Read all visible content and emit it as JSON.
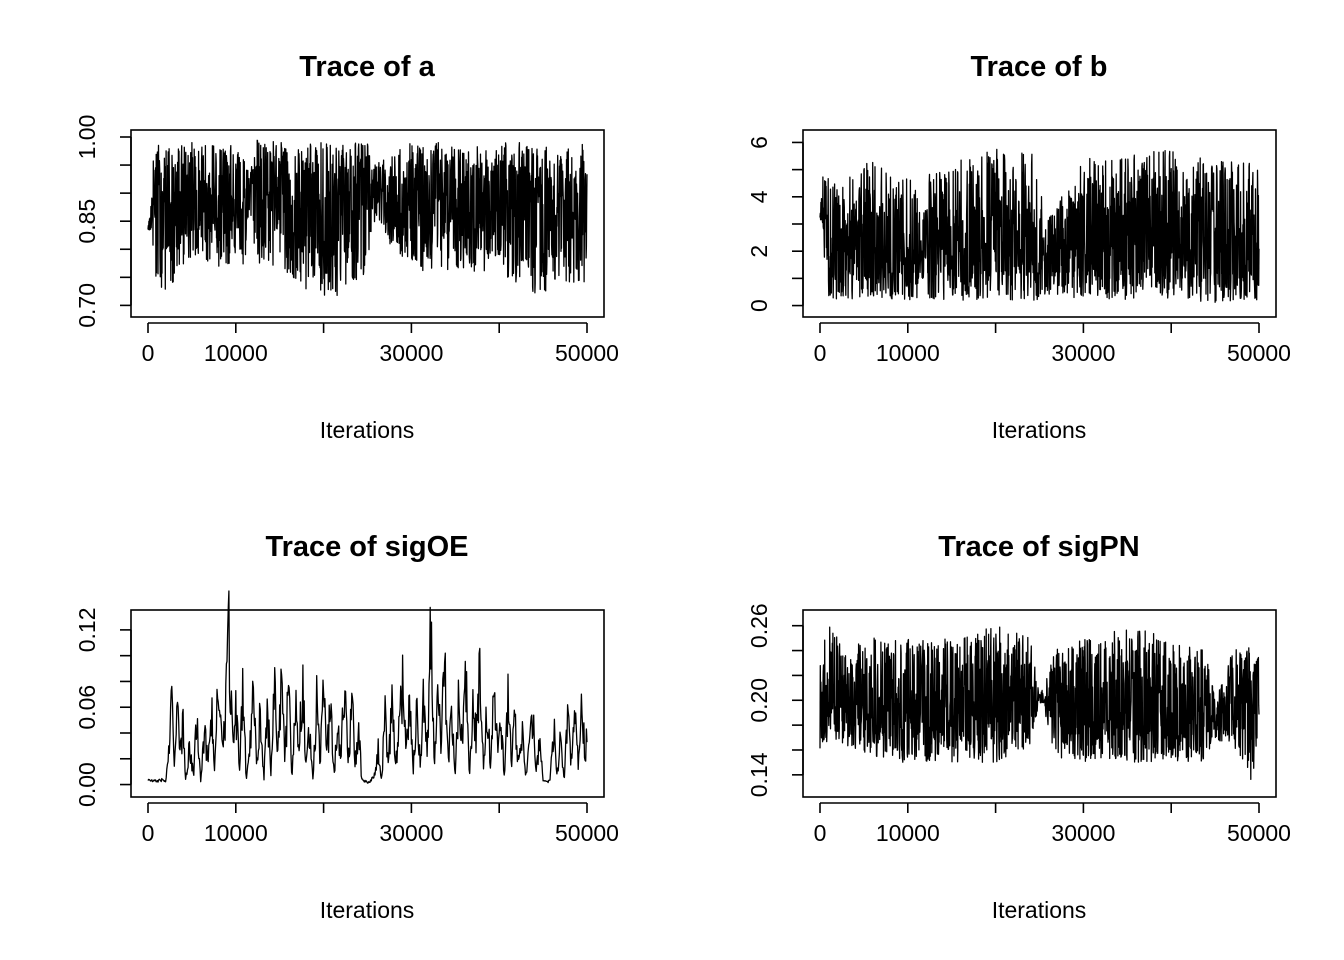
{
  "figure": {
    "colors": {
      "background": "#ffffff",
      "ink": "#000000"
    }
  },
  "chart_data": [
    {
      "type": "line",
      "title": "Trace of a",
      "xlabel": "Iterations",
      "ylabel": "",
      "xlim": [
        0,
        50000
      ],
      "ylim": [
        0.69,
        1.0
      ],
      "x_ticks": [
        0,
        10000,
        20000,
        30000,
        40000,
        50000
      ],
      "x_tick_labels": [
        "0",
        "10000",
        "",
        "30000",
        "",
        "50000"
      ],
      "y_ticks": [
        0.7,
        0.75,
        0.8,
        0.85,
        0.9,
        0.95,
        1.0
      ],
      "y_tick_labels": [
        "0.70",
        "",
        "",
        "0.85",
        "",
        "",
        "1.00"
      ],
      "series": [
        {
          "x": [
            0,
            300,
            600,
            1000,
            2000,
            3000,
            4000,
            5000,
            8000,
            11000,
            11500,
            12500,
            15000,
            20000,
            25000,
            25500,
            30000,
            35000,
            40000,
            45000,
            46000,
            50000
          ],
          "center": [
            0.84,
            0.84,
            0.87,
            0.88,
            0.88,
            0.87,
            0.88,
            0.88,
            0.88,
            0.88,
            0.9,
            0.88,
            0.88,
            0.88,
            0.88,
            0.9,
            0.88,
            0.88,
            0.88,
            0.88,
            0.88,
            0.88
          ],
          "low": [
            0.83,
            0.82,
            0.77,
            0.74,
            0.72,
            0.74,
            0.75,
            0.77,
            0.77,
            0.77,
            0.87,
            0.77,
            0.77,
            0.7,
            0.75,
            0.85,
            0.76,
            0.76,
            0.76,
            0.71,
            0.74,
            0.74
          ],
          "high": [
            0.85,
            0.87,
            0.97,
            0.99,
            0.99,
            0.97,
            0.99,
            0.99,
            0.99,
            0.99,
            0.93,
            1.0,
            0.99,
            0.99,
            0.99,
            0.95,
            0.99,
            0.99,
            0.99,
            0.99,
            0.97,
            0.99
          ]
        }
      ]
    },
    {
      "type": "line",
      "title": "Trace of b",
      "xlabel": "Iterations",
      "ylabel": "",
      "xlim": [
        0,
        50000
      ],
      "ylim": [
        -0.2,
        6.2
      ],
      "x_ticks": [
        0,
        10000,
        20000,
        30000,
        40000,
        50000
      ],
      "x_tick_labels": [
        "0",
        "10000",
        "",
        "30000",
        "",
        "50000"
      ],
      "y_ticks": [
        0,
        1,
        2,
        3,
        4,
        5,
        6
      ],
      "y_tick_labels": [
        "0",
        "",
        "2",
        "",
        "4",
        "",
        "6"
      ],
      "series": [
        {
          "x": [
            0,
            300,
            600,
            1000,
            2000,
            4000,
            5000,
            8000,
            11000,
            11500,
            12500,
            15000,
            20000,
            25000,
            25500,
            30000,
            35000,
            40000,
            45000,
            50000
          ],
          "center": [
            3.3,
            3.2,
            2.5,
            2.0,
            2.0,
            2.0,
            2.3,
            2.0,
            2.0,
            1.8,
            2.0,
            2.2,
            2.3,
            2.2,
            1.6,
            2.2,
            2.2,
            2.3,
            2.3,
            2.0
          ],
          "low": [
            3.2,
            3.0,
            1.0,
            0.3,
            0.2,
            0.2,
            0.3,
            0.2,
            0.2,
            1.0,
            0.2,
            0.2,
            0.2,
            0.2,
            0.4,
            0.2,
            0.2,
            0.2,
            0.1,
            0.2
          ],
          "high": [
            3.5,
            4.8,
            5.0,
            4.6,
            4.5,
            5.0,
            5.6,
            4.8,
            4.6,
            3.0,
            5.0,
            5.2,
            6.0,
            5.5,
            3.0,
            5.4,
            5.6,
            5.8,
            5.3,
            5.3
          ]
        }
      ]
    },
    {
      "type": "line",
      "title": "Trace of sigOE",
      "xlabel": "Iterations",
      "ylabel": "",
      "xlim": [
        0,
        50000
      ],
      "ylim": [
        -0.005,
        0.13
      ],
      "x_ticks": [
        0,
        10000,
        20000,
        30000,
        40000,
        50000
      ],
      "x_tick_labels": [
        "0",
        "10000",
        "",
        "30000",
        "",
        "50000"
      ],
      "y_ticks": [
        0.0,
        0.02,
        0.04,
        0.06,
        0.08,
        0.1,
        0.12
      ],
      "y_tick_labels": [
        "0.00",
        "",
        "",
        "0.06",
        "",
        "",
        "0.12"
      ],
      "series": [
        {
          "name_hidden": true,
          "x": [
            0,
            500,
            1000,
            1500,
            2000,
            2300,
            2700,
            3000,
            3300,
            3600,
            4000,
            4300,
            4700,
            5200,
            5600,
            6000,
            6400,
            6800,
            7200,
            7600,
            8000,
            8400,
            8800,
            9200,
            9600,
            10000,
            10400,
            10800,
            11200,
            11600,
            12000,
            12400,
            12800,
            13200,
            13600,
            14000,
            14400,
            14800,
            15200,
            15600,
            16000,
            16400,
            16800,
            17200,
            17600,
            18000,
            18400,
            18800,
            19200,
            19600,
            20000,
            20400,
            20800,
            21200,
            21600,
            22000,
            22400,
            22800,
            23200,
            23600,
            24000,
            24300,
            24600,
            25000,
            25400,
            25800,
            26200,
            26600,
            27000,
            27400,
            27800,
            28200,
            28600,
            29000,
            29400,
            29800,
            30200,
            30600,
            31000,
            31400,
            31800,
            32200,
            32600,
            33000,
            33400,
            33800,
            34200,
            34600,
            35000,
            35400,
            35800,
            36200,
            36600,
            37000,
            37400,
            37800,
            38200,
            38600,
            39000,
            39400,
            39800,
            40200,
            40600,
            41000,
            41400,
            41800,
            42200,
            42600,
            43000,
            43400,
            43800,
            44200,
            44600,
            45000,
            45400,
            45800,
            46200,
            46600,
            47000,
            47400,
            47800,
            48200,
            48600,
            49000,
            49400,
            49800,
            50000
          ],
          "y": [
            0.004,
            0.003,
            0.003,
            0.004,
            0.003,
            0.02,
            0.07,
            0.015,
            0.09,
            0.02,
            0.05,
            0.005,
            0.03,
            0.01,
            0.06,
            0.004,
            0.045,
            0.02,
            0.07,
            0.01,
            0.095,
            0.03,
            0.06,
            0.125,
            0.04,
            0.065,
            0.015,
            0.08,
            0.005,
            0.03,
            0.095,
            0.02,
            0.06,
            0.003,
            0.07,
            0.01,
            0.095,
            0.03,
            0.08,
            0.02,
            0.09,
            0.006,
            0.075,
            0.03,
            0.09,
            0.015,
            0.05,
            0.004,
            0.07,
            0.02,
            0.09,
            0.03,
            0.065,
            0.01,
            0.05,
            0.03,
            0.09,
            0.015,
            0.07,
            0.02,
            0.05,
            0.008,
            0.003,
            0.002,
            0.003,
            0.01,
            0.03,
            0.005,
            0.06,
            0.02,
            0.07,
            0.015,
            0.05,
            0.09,
            0.03,
            0.08,
            0.01,
            0.065,
            0.02,
            0.075,
            0.03,
            0.13,
            0.015,
            0.07,
            0.04,
            0.1,
            0.02,
            0.06,
            0.01,
            0.08,
            0.03,
            0.09,
            0.005,
            0.07,
            0.04,
            0.095,
            0.015,
            0.06,
            0.02,
            0.075,
            0.03,
            0.05,
            0.01,
            0.07,
            0.02,
            0.06,
            0.015,
            0.045,
            0.008,
            0.03,
            0.06,
            0.01,
            0.04,
            0.005,
            0.002,
            0.003,
            0.05,
            0.01,
            0.04,
            0.003,
            0.06,
            0.02,
            0.08,
            0.015,
            0.07,
            0.02,
            0.05
          ]
        }
      ]
    },
    {
      "type": "line",
      "title": "Trace of sigPN",
      "xlabel": "Iterations",
      "ylabel": "",
      "xlim": [
        0,
        50000
      ],
      "ylim": [
        0.127,
        0.267
      ],
      "x_ticks": [
        0,
        10000,
        20000,
        30000,
        40000,
        50000
      ],
      "x_tick_labels": [
        "0",
        "10000",
        "",
        "30000",
        "",
        "50000"
      ],
      "y_ticks": [
        0.14,
        0.16,
        0.18,
        0.2,
        0.22,
        0.24,
        0.26
      ],
      "y_tick_labels": [
        "0.14",
        "",
        "",
        "0.20",
        "",
        "",
        "0.26"
      ],
      "series": [
        {
          "x": [
            0,
            500,
            1000,
            4000,
            4500,
            8000,
            12000,
            15000,
            20000,
            24000,
            25000,
            25500,
            26500,
            30000,
            35000,
            40000,
            44000,
            45000,
            46000,
            47000,
            49000,
            50000
          ],
          "center": [
            0.205,
            0.195,
            0.2,
            0.19,
            0.2,
            0.19,
            0.19,
            0.195,
            0.19,
            0.2,
            0.2,
            0.2,
            0.19,
            0.19,
            0.19,
            0.19,
            0.19,
            0.188,
            0.19,
            0.2,
            0.195,
            0.195
          ],
          "low": [
            0.16,
            0.16,
            0.17,
            0.16,
            0.16,
            0.15,
            0.15,
            0.15,
            0.15,
            0.16,
            0.198,
            0.198,
            0.15,
            0.15,
            0.15,
            0.15,
            0.15,
            0.17,
            0.16,
            0.16,
            0.133,
            0.16
          ],
          "high": [
            0.25,
            0.25,
            0.26,
            0.23,
            0.25,
            0.25,
            0.25,
            0.25,
            0.26,
            0.25,
            0.205,
            0.21,
            0.24,
            0.25,
            0.26,
            0.25,
            0.24,
            0.2,
            0.22,
            0.24,
            0.245,
            0.245
          ]
        }
      ]
    }
  ]
}
